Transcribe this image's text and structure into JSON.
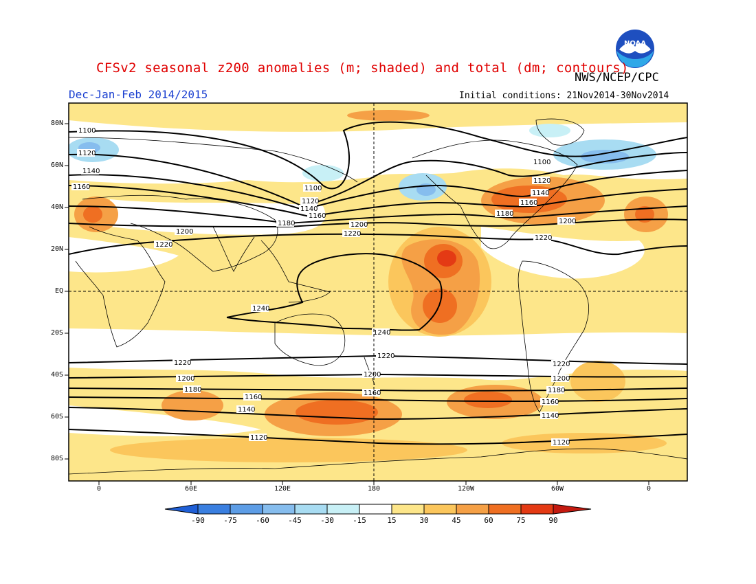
{
  "title": "CFSv2 seasonal z200 anomalies (m; shaded) and total (dm; contours)",
  "period": "Dec-Jan-Feb 2014/2015",
  "agency": "NWS/NCEP/CPC",
  "logo_text": "NOAA",
  "initial_conditions": "Initial conditions: 21Nov2014-30Nov2014",
  "lat_ticks": [
    "80N",
    "60N",
    "40N",
    "20N",
    "EQ",
    "20S",
    "40S",
    "60S",
    "80S"
  ],
  "lon_ticks": [
    "0",
    "60E",
    "120E",
    "180",
    "120W",
    "60W",
    "0"
  ],
  "contour_labels": [
    "1100",
    "1120",
    "1140",
    "1160",
    "1180",
    "1200",
    "1220",
    "1240"
  ],
  "colorbar": {
    "labels": [
      "-90",
      "-75",
      "-60",
      "-45",
      "-30",
      "-15",
      "15",
      "30",
      "45",
      "60",
      "75",
      "90"
    ],
    "colors": [
      "#1f5fd6",
      "#3a7fe0",
      "#5d9de6",
      "#86bdee",
      "#a8dcf2",
      "#c8f0f6",
      "#ffffff",
      "#fde68a",
      "#fbc65c",
      "#f5a046",
      "#ef6f22",
      "#e43a14",
      "#c41a10"
    ]
  },
  "contours": [
    {
      "label": "1100",
      "color": "#000000"
    },
    {
      "label": "1120",
      "color": "#000000"
    },
    {
      "label": "1140",
      "color": "#000000"
    },
    {
      "label": "1160",
      "color": "#000000"
    },
    {
      "label": "1180",
      "color": "#000000"
    },
    {
      "label": "1200",
      "color": "#000000"
    },
    {
      "label": "1220",
      "color": "#000000"
    },
    {
      "label": "1240",
      "color": "#000000"
    }
  ]
}
